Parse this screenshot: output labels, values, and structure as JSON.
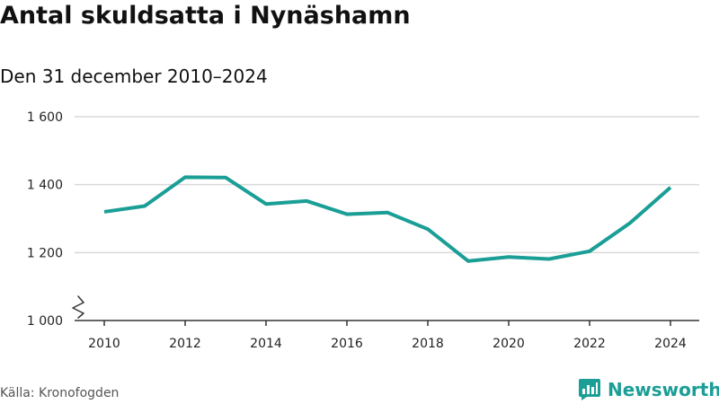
{
  "header": {
    "title": "Antal skuldsatta i Nynäshamn",
    "subtitle": "Den 31 december 2010–2024"
  },
  "footer": {
    "source": "Källa: Kronofogden",
    "brand": "Newsworthy"
  },
  "colors": {
    "line": "#1a9e96",
    "grid": "#d9d9d9",
    "axis": "#333333",
    "brand": "#1a9e96"
  },
  "icons": {
    "logo": "newsworthy-logo-icon",
    "axis_break": "axis-break-icon"
  },
  "chart_data": {
    "type": "line",
    "title": "Antal skuldsatta i Nynäshamn",
    "subtitle": "Den 31 december 2010–2024",
    "xlabel": "",
    "ylabel": "",
    "x": [
      2010,
      2011,
      2012,
      2013,
      2014,
      2015,
      2016,
      2017,
      2018,
      2019,
      2020,
      2021,
      2022,
      2023,
      2024
    ],
    "series": [
      {
        "values": [
          1320,
          1337,
          1422,
          1421,
          1343,
          1352,
          1313,
          1318,
          1269,
          1175,
          1187,
          1181,
          1204,
          1287,
          1392
        ]
      }
    ],
    "xlim": [
      2009.6,
      2024.7
    ],
    "ylim": [
      1000,
      1600
    ],
    "x_ticks": [
      2010,
      2012,
      2014,
      2016,
      2018,
      2020,
      2022,
      2024
    ],
    "x_tick_labels": [
      "2010",
      "2012",
      "2014",
      "2016",
      "2018",
      "2020",
      "2022",
      "2024"
    ],
    "y_ticks": [
      1000,
      1200,
      1400,
      1600
    ],
    "y_tick_labels": [
      "1 000",
      "1 200",
      "1 400",
      "1 600"
    ],
    "y_axis_break": true,
    "grid": "horizontal",
    "legend": "none"
  }
}
